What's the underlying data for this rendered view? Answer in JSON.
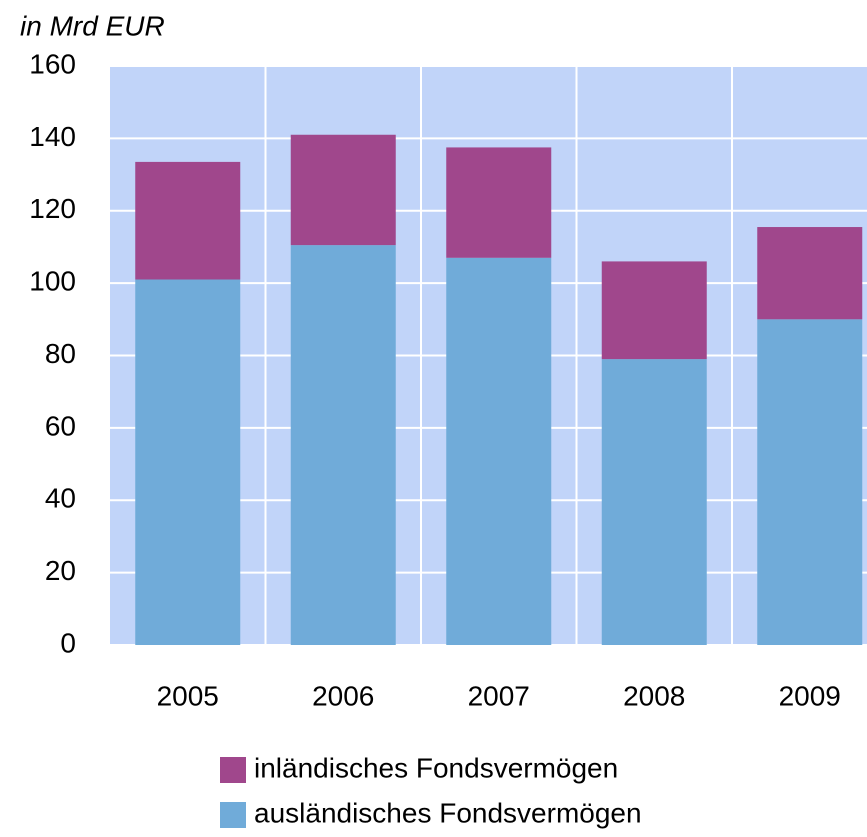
{
  "chart_data": {
    "type": "bar",
    "stacked": true,
    "subtitle": "in Mrd EUR",
    "categories": [
      "2005",
      "2006",
      "2007",
      "2008",
      "2009"
    ],
    "series": [
      {
        "name": "ausländisches Fondsvermögen",
        "color": "#70abd9",
        "values": [
          101,
          110.5,
          107,
          79,
          90
        ]
      },
      {
        "name": "inländisches Fondsvermögen",
        "color": "#a0478c",
        "values": [
          32.5,
          30.5,
          30.5,
          27,
          25.5
        ]
      }
    ],
    "ylim": [
      0,
      160
    ],
    "yticks": [
      0,
      20,
      40,
      60,
      80,
      100,
      120,
      140,
      160
    ],
    "grid": true,
    "plot_background": "#c1d4f9"
  }
}
